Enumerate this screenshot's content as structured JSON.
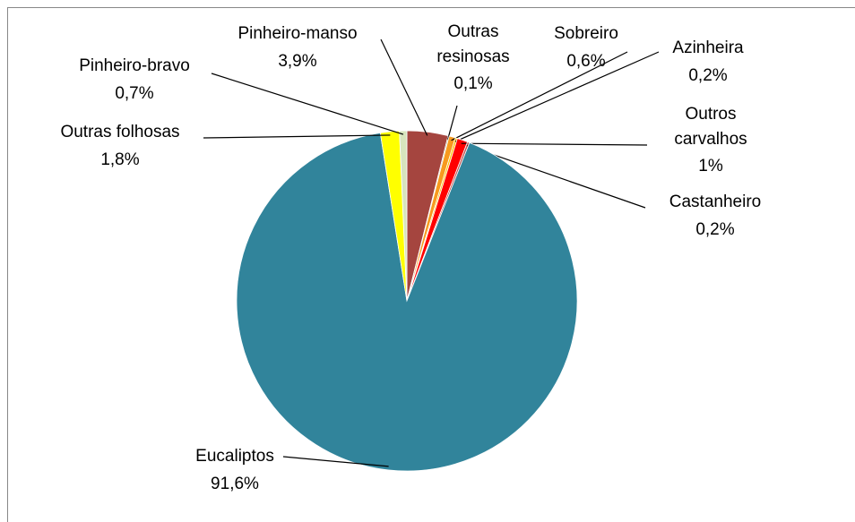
{
  "chart_data": {
    "type": "pie",
    "categories": [
      "Pinheiro-manso",
      "Outras resinosas",
      "Sobreiro",
      "Azinheira",
      "Outros carvalhos",
      "Castanheiro",
      "Eucaliptos",
      "Outras folhosas",
      "Pinheiro-bravo"
    ],
    "values": [
      3.9,
      0.1,
      0.6,
      0.2,
      1,
      0.2,
      91.6,
      1.8,
      0.7
    ],
    "value_labels": [
      "3,9%",
      "0,1%",
      "0,6%",
      "0,2%",
      "1%",
      "0,2%",
      "91,6%",
      "1,8%",
      "0,7%"
    ],
    "colors": [
      "#a5453f",
      "#8a9a5b",
      "#f79a1e",
      "#ffc000",
      "#ff0000",
      "#c0504d",
      "#31849b",
      "#ffff00",
      "#d7e4bd"
    ]
  }
}
